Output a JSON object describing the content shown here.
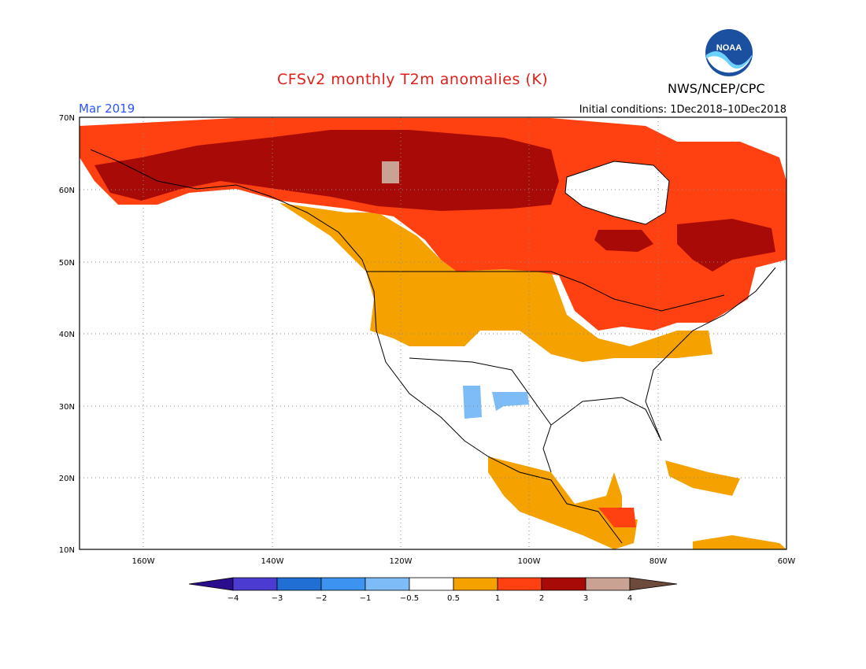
{
  "header": {
    "title": "CFSv2 monthly T2m anomalies (K)",
    "agency": "NWS/NCEP/CPC",
    "logo_text": "NOAA",
    "period": "Mar 2019",
    "initial_conditions": "Initial conditions: 1Dec2018–10Dec2018"
  },
  "map": {
    "lat_ticks": [
      "70N",
      "60N",
      "50N",
      "40N",
      "30N",
      "20N",
      "10N"
    ],
    "lon_ticks": [
      "160W",
      "140W",
      "120W",
      "100W",
      "80W",
      "60W"
    ],
    "extent": {
      "lon": [
        -170,
        -60
      ],
      "lat": [
        10,
        70
      ]
    }
  },
  "colorbar": {
    "labels": [
      "−4",
      "−3",
      "−2",
      "−1",
      "−0.5",
      "0.5",
      "1",
      "2",
      "3",
      "4"
    ],
    "colors": {
      "below_min": "#2a0d8c",
      "c1": "#4c3bd0",
      "c2": "#1f6fd4",
      "c3": "#3c94f0",
      "c4": "#7ebcf7",
      "neutral": "#ffffff",
      "c5": "#f5a200",
      "c6": "#ff4010",
      "c7": "#a80a08",
      "c8": "#c9a294",
      "above_max": "#6e4a3c"
    }
  }
}
